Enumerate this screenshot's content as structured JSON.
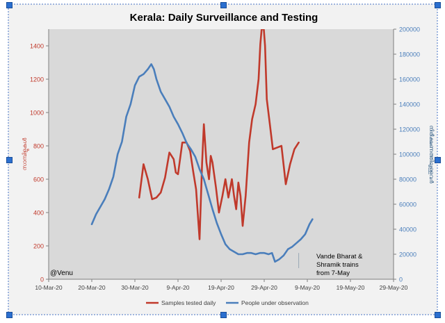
{
  "watermark": "@Venu",
  "colors": {
    "series_red": "#c0392b",
    "series_blue": "#4a7ebb",
    "plot_bg": "#d9d9d9",
    "outer_bg": "#f2f2f2",
    "frame_border": "#4472c4",
    "handle": "#2b6fcf",
    "annotation_line": "#9aa7b5"
  },
  "chart_data": {
    "type": "line",
    "title": "Kerala: Daily Surveillance and Testing",
    "xlabel": "",
    "x_ticks": [
      "10-Mar-20",
      "20-Mar-20",
      "30-Mar-20",
      "9-Apr-20",
      "19-Apr-20",
      "29-Apr-20",
      "9-May-20",
      "19-May-20",
      "29-May-20"
    ],
    "x_range_days": [
      0,
      80
    ],
    "y_left": {
      "label": "സാമ്പിളുകൾ",
      "range": [
        0,
        1500
      ],
      "ticks": [
        0,
        200,
        400,
        600,
        800,
        1000,
        1200,
        1400
      ]
    },
    "y_right": {
      "label": "നിരീക്ഷണത്തിലുള്ളവർ",
      "range": [
        0,
        200000
      ],
      "ticks": [
        0,
        20000,
        40000,
        60000,
        80000,
        100000,
        120000,
        140000,
        160000,
        180000,
        200000
      ]
    },
    "series": [
      {
        "name": "Samples tested daily",
        "axis": "left",
        "points": [
          [
            21,
            490
          ],
          [
            22,
            690
          ],
          [
            23,
            600
          ],
          [
            24,
            480
          ],
          [
            25,
            490
          ],
          [
            26,
            520
          ],
          [
            27,
            610
          ],
          [
            28,
            760
          ],
          [
            29,
            720
          ],
          [
            29.5,
            640
          ],
          [
            30,
            630
          ],
          [
            31,
            820
          ],
          [
            32,
            820
          ],
          [
            32.8,
            770
          ],
          [
            33.5,
            650
          ],
          [
            34.2,
            540
          ],
          [
            35,
            240
          ],
          [
            35.6,
            700
          ],
          [
            36,
            930
          ],
          [
            36.6,
            700
          ],
          [
            37.2,
            600
          ],
          [
            37.6,
            740
          ],
          [
            38,
            700
          ],
          [
            38.8,
            550
          ],
          [
            39.5,
            400
          ],
          [
            40.3,
            500
          ],
          [
            41,
            600
          ],
          [
            41.7,
            490
          ],
          [
            42.5,
            600
          ],
          [
            43,
            500
          ],
          [
            43.5,
            420
          ],
          [
            44,
            580
          ],
          [
            44.5,
            500
          ],
          [
            45,
            320
          ],
          [
            45.7,
            500
          ],
          [
            46.5,
            820
          ],
          [
            47.2,
            960
          ],
          [
            48,
            1050
          ],
          [
            48.7,
            1200
          ],
          [
            49.1,
            1410
          ],
          [
            49.4,
            1500
          ],
          [
            49.9,
            1500
          ],
          [
            50.2,
            1400
          ],
          [
            50.6,
            1080
          ],
          [
            51.3,
            930
          ],
          [
            52,
            780
          ],
          [
            53,
            790
          ],
          [
            54,
            800
          ],
          [
            55,
            570
          ],
          [
            56,
            690
          ],
          [
            57,
            780
          ],
          [
            58,
            820
          ]
        ]
      },
      {
        "name": "People under observation",
        "axis": "right",
        "points": [
          [
            10,
            44000
          ],
          [
            11,
            52000
          ],
          [
            12,
            58000
          ],
          [
            13,
            64000
          ],
          [
            14,
            72000
          ],
          [
            15,
            82000
          ],
          [
            16,
            100000
          ],
          [
            17,
            110000
          ],
          [
            18,
            130000
          ],
          [
            19,
            140000
          ],
          [
            20,
            155000
          ],
          [
            21,
            162000
          ],
          [
            22,
            164000
          ],
          [
            23,
            168000
          ],
          [
            23.8,
            172000
          ],
          [
            24.4,
            168000
          ],
          [
            25,
            160000
          ],
          [
            26,
            150000
          ],
          [
            27,
            144000
          ],
          [
            28,
            138000
          ],
          [
            29,
            130000
          ],
          [
            30,
            124000
          ],
          [
            31,
            117000
          ],
          [
            32,
            109000
          ],
          [
            33,
            104000
          ],
          [
            34,
            98000
          ],
          [
            35,
            88000
          ],
          [
            36,
            80000
          ],
          [
            37,
            68000
          ],
          [
            38,
            56000
          ],
          [
            39,
            45000
          ],
          [
            40,
            36000
          ],
          [
            41,
            28000
          ],
          [
            42,
            24000
          ],
          [
            43,
            22000
          ],
          [
            44,
            20000
          ],
          [
            45,
            20000
          ],
          [
            46,
            21000
          ],
          [
            47,
            21000
          ],
          [
            48,
            20000
          ],
          [
            49,
            21000
          ],
          [
            50,
            21000
          ],
          [
            51,
            20000
          ],
          [
            51.8,
            21000
          ],
          [
            52.5,
            14000
          ],
          [
            53.5,
            16000
          ],
          [
            54.5,
            19000
          ],
          [
            55.5,
            24000
          ],
          [
            56.5,
            26000
          ],
          [
            57.5,
            29000
          ],
          [
            58.5,
            32000
          ],
          [
            59.5,
            36000
          ],
          [
            60.5,
            44000
          ],
          [
            61.2,
            48000
          ]
        ]
      }
    ],
    "legend": {
      "position": "bottom",
      "items": [
        "Samples tested daily",
        "People under observation"
      ]
    },
    "annotation": {
      "lines": [
        "Vande Bharat &",
        "Shramik trains",
        "from 7-May"
      ],
      "x_day": 58
    },
    "grid": false
  }
}
